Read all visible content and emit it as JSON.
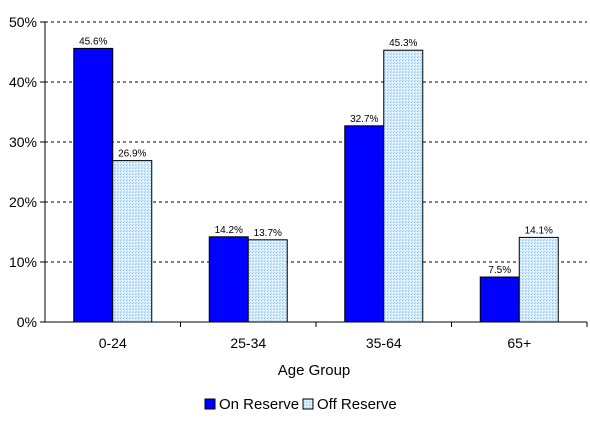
{
  "chart_data": {
    "type": "bar",
    "categories": [
      "0-24",
      "25-34",
      "35-64",
      "65+"
    ],
    "series": [
      {
        "name": "On Reserve",
        "values": [
          45.6,
          14.2,
          32.7,
          7.5
        ],
        "labels": [
          "45.6%",
          "14.2%",
          "32.7%",
          "7.5%"
        ],
        "color": "#0000ff",
        "pattern": "solid"
      },
      {
        "name": "Off Reserve",
        "values": [
          26.9,
          13.7,
          45.3,
          14.1
        ],
        "labels": [
          "26.9%",
          "13.7%",
          "45.3%",
          "14.1%"
        ],
        "color": "#cce6ff",
        "pattern": "light-blue-dotted"
      }
    ],
    "title": "",
    "xlabel": "Age Group",
    "ylabel": "",
    "ylim": [
      0,
      50
    ],
    "yticks": [
      0,
      10,
      20,
      30,
      40,
      50
    ],
    "ytick_labels": [
      "0%",
      "10%",
      "20%",
      "30%",
      "40%",
      "50%"
    ],
    "grid": "horizontal dashed",
    "legend_position": "bottom"
  }
}
